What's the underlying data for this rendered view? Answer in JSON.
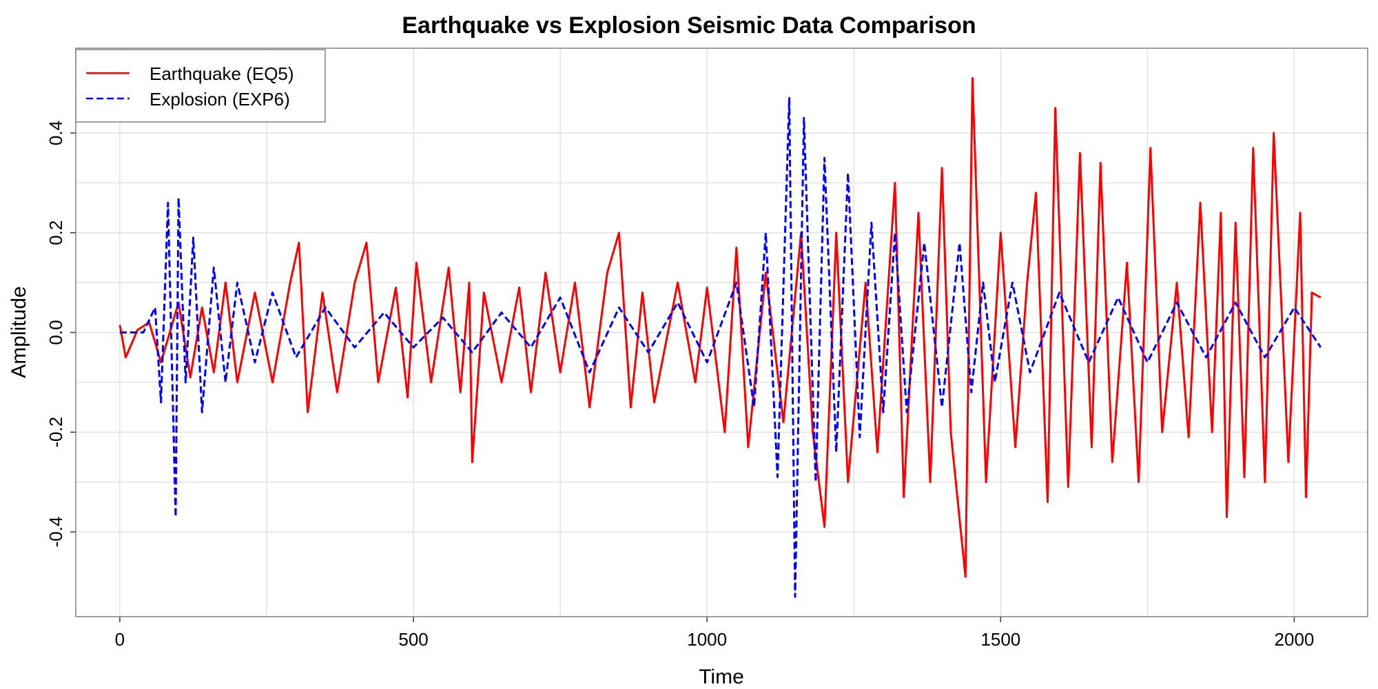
{
  "chart_data": {
    "type": "line",
    "title": "Earthquake vs Explosion Seismic Data Comparison",
    "xlabel": "Time",
    "ylabel": "Amplitude",
    "xlim": [
      -75,
      2125
    ],
    "ylim": [
      -0.57,
      0.57
    ],
    "x_ticks": [
      0,
      500,
      1000,
      1500,
      2000
    ],
    "x_tick_labels": [
      "0",
      "500",
      "1000",
      "1500",
      "2000"
    ],
    "y_ticks": [
      -0.4,
      -0.2,
      0.0,
      0.2,
      0.4
    ],
    "y_tick_labels": [
      "-0.4",
      "-0.2",
      "0.0",
      "0.2",
      "0.4"
    ],
    "grid": true,
    "legend_position": "top-left",
    "series": [
      {
        "name": "Earthquake (EQ5)",
        "color": "#ff0000",
        "dash": "solid",
        "points": [
          [
            0,
            0.015
          ],
          [
            10,
            -0.05
          ],
          [
            30,
            0.005
          ],
          [
            50,
            0.02
          ],
          [
            70,
            -0.06
          ],
          [
            100,
            0.06
          ],
          [
            120,
            -0.09
          ],
          [
            140,
            0.05
          ],
          [
            160,
            -0.08
          ],
          [
            180,
            0.1
          ],
          [
            200,
            -0.1
          ],
          [
            230,
            0.08
          ],
          [
            260,
            -0.1
          ],
          [
            290,
            0.1
          ],
          [
            305,
            0.18
          ],
          [
            320,
            -0.16
          ],
          [
            345,
            0.08
          ],
          [
            370,
            -0.12
          ],
          [
            400,
            0.1
          ],
          [
            420,
            0.18
          ],
          [
            440,
            -0.1
          ],
          [
            470,
            0.09
          ],
          [
            490,
            -0.13
          ],
          [
            505,
            0.14
          ],
          [
            530,
            -0.1
          ],
          [
            560,
            0.13
          ],
          [
            580,
            -0.12
          ],
          [
            595,
            0.1
          ],
          [
            600,
            -0.26
          ],
          [
            620,
            0.08
          ],
          [
            650,
            -0.1
          ],
          [
            680,
            0.09
          ],
          [
            700,
            -0.12
          ],
          [
            725,
            0.12
          ],
          [
            750,
            -0.08
          ],
          [
            775,
            0.1
          ],
          [
            800,
            -0.15
          ],
          [
            830,
            0.12
          ],
          [
            850,
            0.2
          ],
          [
            870,
            -0.15
          ],
          [
            890,
            0.08
          ],
          [
            910,
            -0.14
          ],
          [
            950,
            0.1
          ],
          [
            980,
            -0.1
          ],
          [
            1000,
            0.09
          ],
          [
            1030,
            -0.2
          ],
          [
            1050,
            0.17
          ],
          [
            1070,
            -0.23
          ],
          [
            1100,
            0.12
          ],
          [
            1130,
            -0.18
          ],
          [
            1160,
            0.2
          ],
          [
            1180,
            -0.2
          ],
          [
            1200,
            -0.39
          ],
          [
            1220,
            0.2
          ],
          [
            1240,
            -0.3
          ],
          [
            1270,
            0.1
          ],
          [
            1290,
            -0.24
          ],
          [
            1320,
            0.3
          ],
          [
            1335,
            -0.33
          ],
          [
            1360,
            0.24
          ],
          [
            1380,
            -0.3
          ],
          [
            1400,
            0.33
          ],
          [
            1415,
            -0.2
          ],
          [
            1440,
            -0.49
          ],
          [
            1452,
            0.51
          ],
          [
            1475,
            -0.3
          ],
          [
            1500,
            0.2
          ],
          [
            1525,
            -0.23
          ],
          [
            1545,
            0.1
          ],
          [
            1560,
            0.28
          ],
          [
            1580,
            -0.34
          ],
          [
            1593,
            0.45
          ],
          [
            1615,
            -0.31
          ],
          [
            1635,
            0.36
          ],
          [
            1655,
            -0.23
          ],
          [
            1670,
            0.34
          ],
          [
            1690,
            -0.26
          ],
          [
            1715,
            0.14
          ],
          [
            1735,
            -0.3
          ],
          [
            1755,
            0.37
          ],
          [
            1775,
            -0.2
          ],
          [
            1800,
            0.1
          ],
          [
            1820,
            -0.21
          ],
          [
            1840,
            0.26
          ],
          [
            1860,
            -0.2
          ],
          [
            1875,
            0.24
          ],
          [
            1885,
            -0.37
          ],
          [
            1900,
            0.22
          ],
          [
            1915,
            -0.29
          ],
          [
            1930,
            0.37
          ],
          [
            1950,
            -0.3
          ],
          [
            1965,
            0.4
          ],
          [
            1990,
            -0.26
          ],
          [
            2010,
            0.24
          ],
          [
            2020,
            -0.33
          ],
          [
            2030,
            0.08
          ],
          [
            2045,
            0.07
          ]
        ]
      },
      {
        "name": "Explosion (EXP6)",
        "color": "#0000ff",
        "dash": "dashed",
        "points": [
          [
            0,
            0.0
          ],
          [
            40,
            0.0
          ],
          [
            60,
            0.05
          ],
          [
            70,
            -0.14
          ],
          [
            82,
            0.26
          ],
          [
            95,
            -0.37
          ],
          [
            100,
            0.27
          ],
          [
            112,
            -0.1
          ],
          [
            125,
            0.19
          ],
          [
            140,
            -0.16
          ],
          [
            160,
            0.13
          ],
          [
            180,
            -0.1
          ],
          [
            200,
            0.1
          ],
          [
            230,
            -0.06
          ],
          [
            260,
            0.08
          ],
          [
            300,
            -0.05
          ],
          [
            350,
            0.05
          ],
          [
            400,
            -0.03
          ],
          [
            450,
            0.04
          ],
          [
            500,
            -0.03
          ],
          [
            550,
            0.03
          ],
          [
            600,
            -0.04
          ],
          [
            650,
            0.04
          ],
          [
            700,
            -0.03
          ],
          [
            750,
            0.07
          ],
          [
            800,
            -0.08
          ],
          [
            850,
            0.05
          ],
          [
            900,
            -0.04
          ],
          [
            950,
            0.06
          ],
          [
            1000,
            -0.06
          ],
          [
            1050,
            0.1
          ],
          [
            1080,
            -0.15
          ],
          [
            1100,
            0.2
          ],
          [
            1120,
            -0.29
          ],
          [
            1140,
            0.47
          ],
          [
            1150,
            -0.53
          ],
          [
            1165,
            0.43
          ],
          [
            1185,
            -0.3
          ],
          [
            1200,
            0.35
          ],
          [
            1220,
            -0.24
          ],
          [
            1240,
            0.32
          ],
          [
            1260,
            -0.21
          ],
          [
            1280,
            0.22
          ],
          [
            1300,
            -0.16
          ],
          [
            1320,
            0.2
          ],
          [
            1340,
            -0.16
          ],
          [
            1370,
            0.18
          ],
          [
            1400,
            -0.15
          ],
          [
            1430,
            0.18
          ],
          [
            1450,
            -0.12
          ],
          [
            1470,
            0.1
          ],
          [
            1490,
            -0.1
          ],
          [
            1520,
            0.1
          ],
          [
            1550,
            -0.08
          ],
          [
            1600,
            0.08
          ],
          [
            1650,
            -0.06
          ],
          [
            1700,
            0.07
          ],
          [
            1750,
            -0.06
          ],
          [
            1800,
            0.06
          ],
          [
            1850,
            -0.05
          ],
          [
            1900,
            0.06
          ],
          [
            1950,
            -0.05
          ],
          [
            2000,
            0.05
          ],
          [
            2045,
            -0.03
          ]
        ]
      }
    ]
  }
}
